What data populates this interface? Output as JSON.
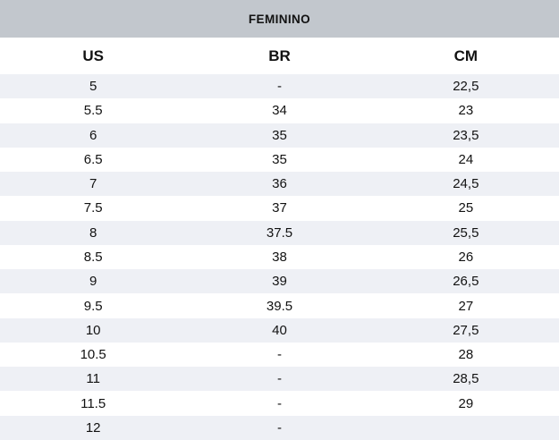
{
  "title": "FEMININO",
  "table": {
    "columns": [
      "US",
      "BR",
      "CM"
    ],
    "rows": [
      {
        "us": "5",
        "br": "-",
        "cm": "22,5"
      },
      {
        "us": "5.5",
        "br": "34",
        "cm": "23"
      },
      {
        "us": "6",
        "br": "35",
        "cm": "23,5"
      },
      {
        "us": "6.5",
        "br": "35",
        "cm": "24"
      },
      {
        "us": "7",
        "br": "36",
        "cm": "24,5"
      },
      {
        "us": "7.5",
        "br": "37",
        "cm": "25"
      },
      {
        "us": "8",
        "br": "37.5",
        "cm": "25,5"
      },
      {
        "us": "8.5",
        "br": "38",
        "cm": "26"
      },
      {
        "us": "9",
        "br": "39",
        "cm": "26,5"
      },
      {
        "us": "9.5",
        "br": "39.5",
        "cm": "27"
      },
      {
        "us": "10",
        "br": "40",
        "cm": "27,5"
      },
      {
        "us": "10.5",
        "br": "-",
        "cm": "28"
      },
      {
        "us": "11",
        "br": "-",
        "cm": "28,5"
      },
      {
        "us": "11.5",
        "br": "-",
        "cm": "29"
      },
      {
        "us": "12",
        "br": "-",
        "cm": ""
      }
    ]
  },
  "colors": {
    "header_band": "#c2c7cd",
    "stripe": "#eef0f5",
    "text": "#121212",
    "background": "#ffffff"
  }
}
